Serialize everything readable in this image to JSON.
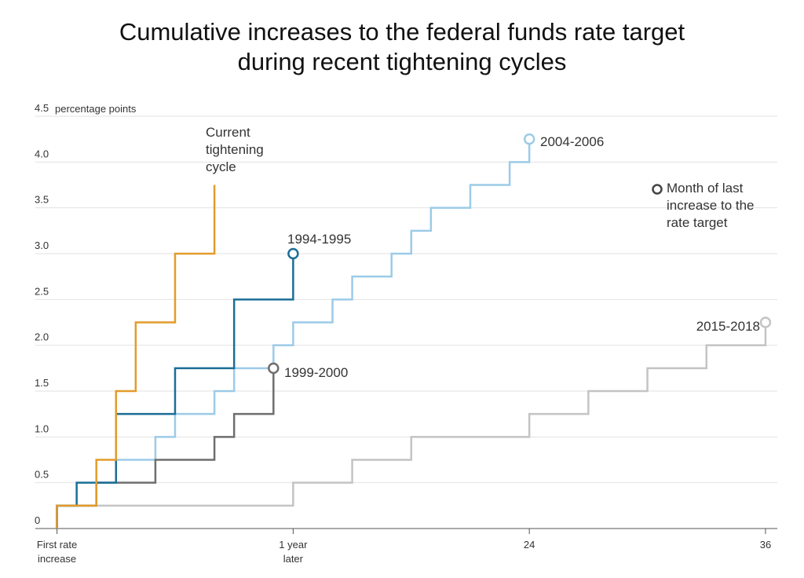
{
  "chart_data": {
    "type": "step",
    "title": "Cumulative increases to the federal funds rate target during recent tightening cycles",
    "y_label": "percentage points",
    "note": "Month of last increase to the rate target",
    "xlim": [
      -1.1,
      36.6
    ],
    "xticks": [
      {
        "value": 0,
        "label": "First rate increase"
      },
      {
        "value": 12,
        "label": "1 year later"
      },
      24,
      36
    ],
    "ylim": [
      0,
      4.5
    ],
    "yticks": [
      0,
      0.5,
      {
        "value": 1,
        "label": "1.0"
      },
      1.5,
      {
        "value": 2,
        "label": "2.0"
      },
      2.5,
      {
        "value": 3,
        "label": "3.0"
      },
      3.5,
      {
        "value": 4,
        "label": "4.0"
      },
      4.5
    ],
    "grid": true,
    "series": [
      {
        "name": "Current tightening cycle",
        "color": "#e39b2b",
        "end_marker": false,
        "x": [
          0,
          0,
          2,
          3,
          4,
          6,
          8
        ],
        "values": [
          0,
          0.25,
          0.75,
          1.5,
          2.25,
          3.0,
          3.75
        ]
      },
      {
        "name": "1994-1995",
        "color": "#1b6e96",
        "end_marker": true,
        "x": [
          0,
          0,
          1,
          3,
          6,
          9,
          12
        ],
        "values": [
          0,
          0.25,
          0.5,
          1.25,
          1.75,
          2.5,
          3.0
        ]
      },
      {
        "name": "1999-2000",
        "color": "#6e6e6e",
        "end_marker": true,
        "x": [
          0,
          0,
          2,
          5,
          8,
          9,
          11
        ],
        "values": [
          0,
          0.25,
          0.5,
          0.75,
          1.0,
          1.25,
          1.75
        ]
      },
      {
        "name": "2004-2006",
        "color": "#9ccbe8",
        "end_marker": true,
        "x": [
          0,
          0,
          2,
          3,
          5,
          6,
          8,
          9,
          11,
          12,
          14,
          15,
          17,
          18,
          19,
          21,
          23,
          24
        ],
        "values": [
          0,
          0.25,
          0.5,
          0.75,
          1.0,
          1.25,
          1.5,
          1.75,
          2.0,
          2.25,
          2.5,
          2.75,
          3.0,
          3.25,
          3.5,
          3.75,
          4.0,
          4.25
        ]
      },
      {
        "name": "2015-2018",
        "color": "#c4c4c4",
        "end_marker": true,
        "x": [
          0,
          0,
          12,
          15,
          18,
          24,
          27,
          30,
          33,
          36
        ],
        "values": [
          0,
          0.25,
          0.5,
          0.75,
          1.0,
          1.25,
          1.5,
          1.75,
          2.0,
          2.25
        ]
      }
    ]
  }
}
